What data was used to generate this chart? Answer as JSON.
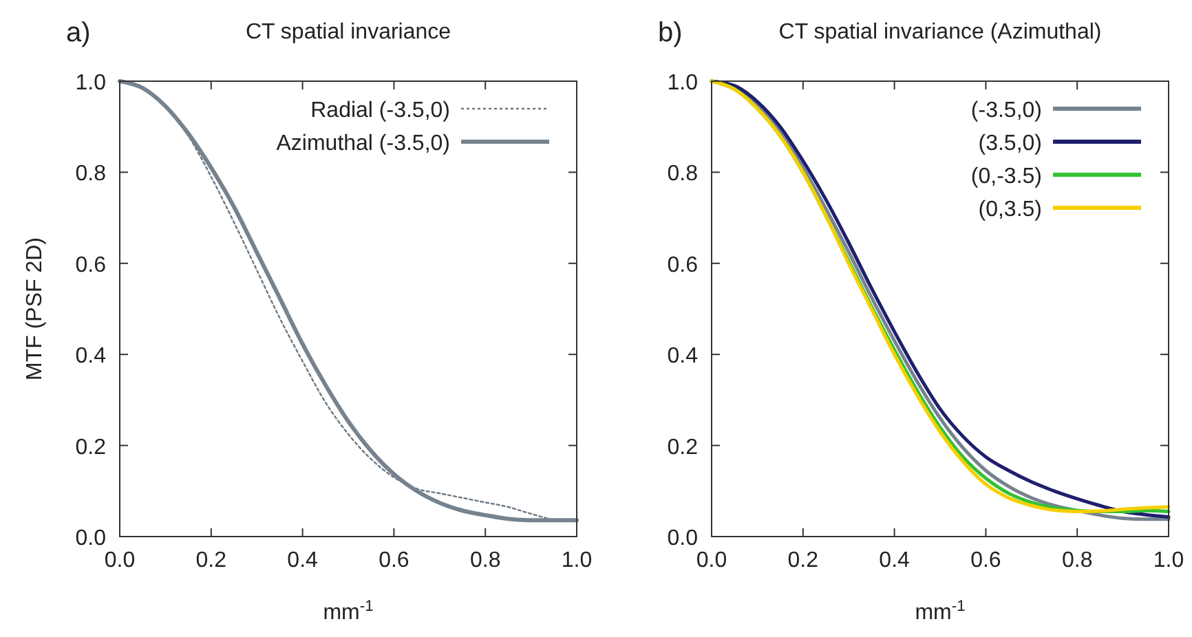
{
  "chart_data": [
    {
      "type": "line",
      "title": "CT spatial invariance",
      "xlabel": "mm$^{-1}$",
      "ylabel": "MTF (PSF 2D)",
      "annotations": [
        "a)"
      ],
      "legend": "top right",
      "grid": false,
      "x": [
        0,
        0.05,
        0.1,
        0.15,
        0.2,
        0.25,
        0.3,
        0.35,
        0.4,
        0.45,
        0.5,
        0.55,
        0.6,
        0.65,
        0.7,
        0.75,
        0.8,
        0.85,
        0.9,
        0.95,
        1.0
      ],
      "xlim": [
        0,
        1
      ],
      "xticks": [
        {
          "value": 0,
          "label": "0.0"
        },
        {
          "value": 0.2,
          "label": "0.2"
        },
        {
          "value": 0.4,
          "label": "0.4"
        },
        {
          "value": 0.6,
          "label": "0.6"
        },
        {
          "value": 0.8,
          "label": "0.8"
        },
        {
          "value": 1,
          "label": "1.0"
        }
      ],
      "ylim": [
        0,
        1
      ],
      "yticks": [
        {
          "value": 0,
          "label": "0.0"
        },
        {
          "value": 0.2,
          "label": "0.2"
        },
        {
          "value": 0.4,
          "label": "0.4"
        },
        {
          "value": 0.6,
          "label": "0.6"
        },
        {
          "value": 0.8,
          "label": "0.8"
        },
        {
          "value": 1,
          "label": "1.0"
        }
      ],
      "series": [
        {
          "name": "Radial (-3.5,0)",
          "color": "#6b7884",
          "line_style": "dotted",
          "values": [
            1.0,
            0.985,
            0.945,
            0.88,
            0.79,
            0.69,
            0.585,
            0.48,
            0.385,
            0.295,
            0.225,
            0.17,
            0.13,
            0.105,
            0.095,
            0.085,
            0.075,
            0.065,
            0.05,
            0.037,
            0.033
          ]
        },
        {
          "name": "Azimuthal (-3.5,0)",
          "color": "#76838f",
          "line_style": "solid",
          "values": [
            1.0,
            0.985,
            0.945,
            0.885,
            0.81,
            0.724,
            0.624,
            0.524,
            0.423,
            0.333,
            0.253,
            0.188,
            0.137,
            0.1,
            0.074,
            0.057,
            0.047,
            0.039,
            0.036,
            0.036,
            0.036
          ]
        }
      ]
    },
    {
      "type": "line",
      "title": "CT spatial invariance (Azimuthal)",
      "xlabel": "mm$^{-1}$",
      "annotations": [
        "b)"
      ],
      "legend": "top right",
      "grid": false,
      "x": [
        0,
        0.05,
        0.1,
        0.15,
        0.2,
        0.25,
        0.3,
        0.35,
        0.4,
        0.45,
        0.5,
        0.55,
        0.6,
        0.65,
        0.7,
        0.75,
        0.8,
        0.85,
        0.9,
        0.95,
        1.0
      ],
      "xlim": [
        0,
        1
      ],
      "xticks": [
        {
          "value": 0,
          "label": "0.0"
        },
        {
          "value": 0.2,
          "label": "0.2"
        },
        {
          "value": 0.4,
          "label": "0.4"
        },
        {
          "value": 0.6,
          "label": "0.6"
        },
        {
          "value": 0.8,
          "label": "0.8"
        },
        {
          "value": 1,
          "label": "1.0"
        }
      ],
      "ylim": [
        0,
        1
      ],
      "yticks": [
        {
          "value": 0,
          "label": "0.0"
        },
        {
          "value": 0.2,
          "label": "0.2"
        },
        {
          "value": 0.4,
          "label": "0.4"
        },
        {
          "value": 0.6,
          "label": "0.6"
        },
        {
          "value": 0.8,
          "label": "0.8"
        },
        {
          "value": 1,
          "label": "1.0"
        }
      ],
      "series": [
        {
          "name": "(-3.5,0)",
          "color": "#76838f",
          "line_style": "solid",
          "values": [
            1.0,
            0.985,
            0.945,
            0.89,
            0.81,
            0.72,
            0.625,
            0.525,
            0.43,
            0.34,
            0.26,
            0.195,
            0.145,
            0.11,
            0.085,
            0.068,
            0.057,
            0.047,
            0.04,
            0.038,
            0.038
          ]
        },
        {
          "name": "(3.5,0)",
          "color": "#1f1f6e",
          "line_style": "solid",
          "values": [
            1.0,
            0.99,
            0.955,
            0.9,
            0.825,
            0.74,
            0.645,
            0.545,
            0.45,
            0.36,
            0.28,
            0.22,
            0.175,
            0.145,
            0.12,
            0.1,
            0.083,
            0.068,
            0.055,
            0.048,
            0.043
          ]
        },
        {
          "name": "(0,-3.5)",
          "color": "#33c233",
          "line_style": "solid",
          "values": [
            1.0,
            0.983,
            0.94,
            0.88,
            0.8,
            0.705,
            0.605,
            0.505,
            0.41,
            0.32,
            0.24,
            0.175,
            0.128,
            0.095,
            0.075,
            0.063,
            0.057,
            0.055,
            0.055,
            0.057,
            0.055
          ]
        },
        {
          "name": "(0,3.5)",
          "color": "#f5cf00",
          "line_style": "solid",
          "values": [
            1.0,
            0.982,
            0.94,
            0.88,
            0.8,
            0.705,
            0.6,
            0.5,
            0.4,
            0.31,
            0.23,
            0.165,
            0.115,
            0.085,
            0.068,
            0.058,
            0.055,
            0.056,
            0.06,
            0.063,
            0.065
          ]
        }
      ]
    }
  ]
}
